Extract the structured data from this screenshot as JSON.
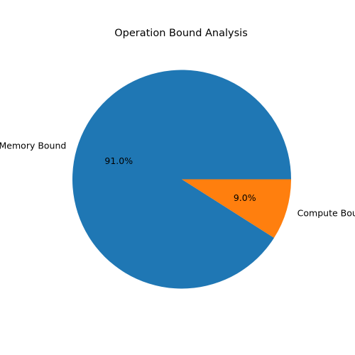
{
  "chart_data": {
    "type": "pie",
    "title": "Operation Bound Analysis",
    "labels": [
      "Memory Bound",
      "Compute Bound"
    ],
    "values": [
      91.0,
      9.0
    ],
    "percent_labels": [
      "91.0%",
      "9.0%"
    ],
    "colors": [
      "#1f77b4",
      "#ff7f0e"
    ],
    "start_angle_deg": 0,
    "direction": "counterclockwise",
    "legend": "none"
  }
}
